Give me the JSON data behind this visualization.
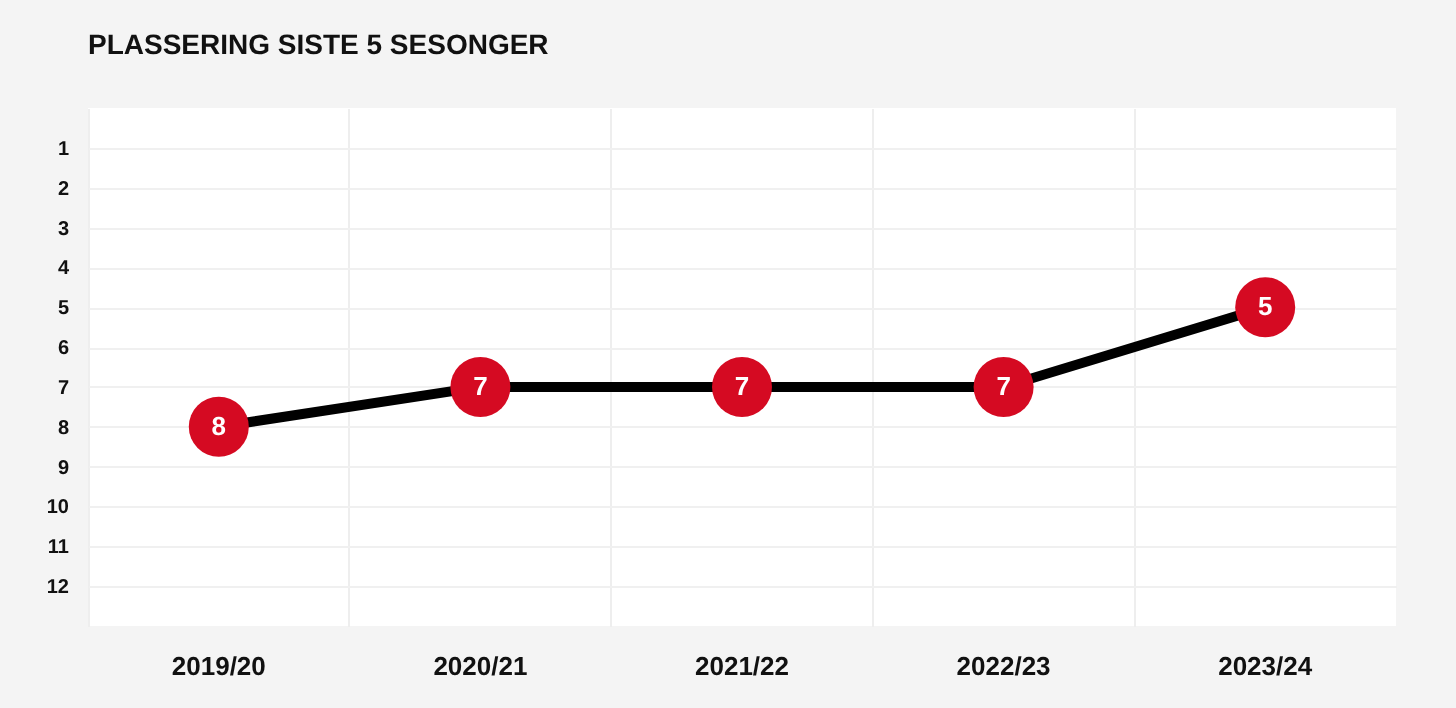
{
  "chart_data": {
    "type": "line",
    "title": "PLASSERING SISTE 5 SESONGER",
    "categories": [
      "2019/20",
      "2020/21",
      "2021/22",
      "2022/23",
      "2023/24"
    ],
    "series": [
      {
        "color": "#000000",
        "colors": [
          "#d50a22",
          "#d50a22",
          "#d50a22",
          "#d50a22",
          "#d50a22"
        ],
        "values": [
          8,
          7,
          7,
          7,
          5
        ]
      }
    ],
    "ylim": [
      13,
      0
    ],
    "yticks": [
      1,
      2,
      3,
      4,
      5,
      6,
      7,
      8,
      9,
      10,
      11,
      12
    ],
    "grid": true,
    "marker": "circle",
    "data_labels": true
  }
}
